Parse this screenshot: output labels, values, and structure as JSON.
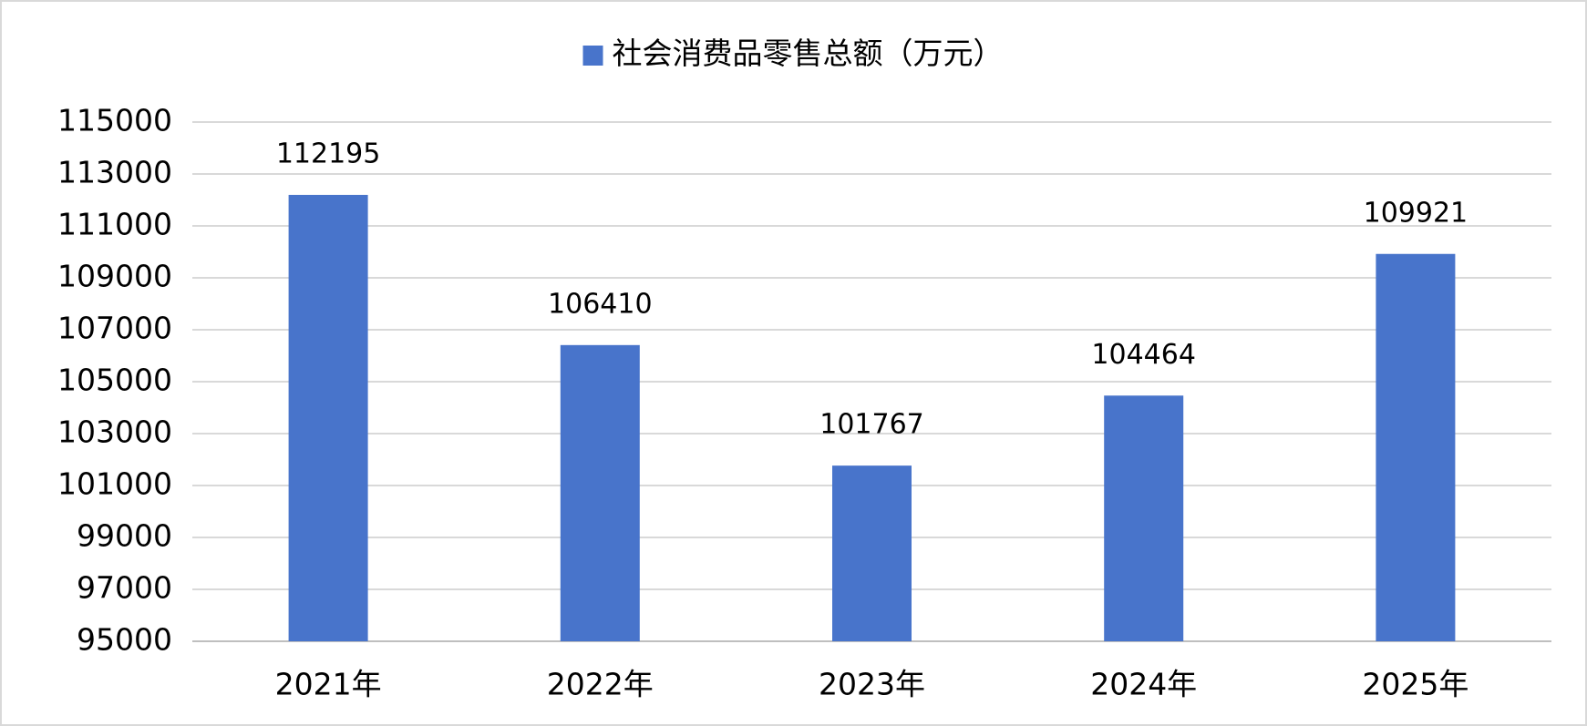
{
  "chart_data": {
    "type": "bar",
    "categories": [
      "2021年",
      "2022年",
      "2023年",
      "2024年",
      "2025年"
    ],
    "series": [
      {
        "name": "社会消费品零售总额（万元）",
        "color": "#4874cb",
        "values": [
          112195,
          106410,
          101767,
          104464,
          109921
        ]
      }
    ],
    "ylim": [
      95000,
      115000
    ],
    "yticks": [
      95000,
      97000,
      99000,
      101000,
      103000,
      105000,
      107000,
      109000,
      111000,
      113000,
      115000
    ],
    "grid": true,
    "legend": "top"
  }
}
